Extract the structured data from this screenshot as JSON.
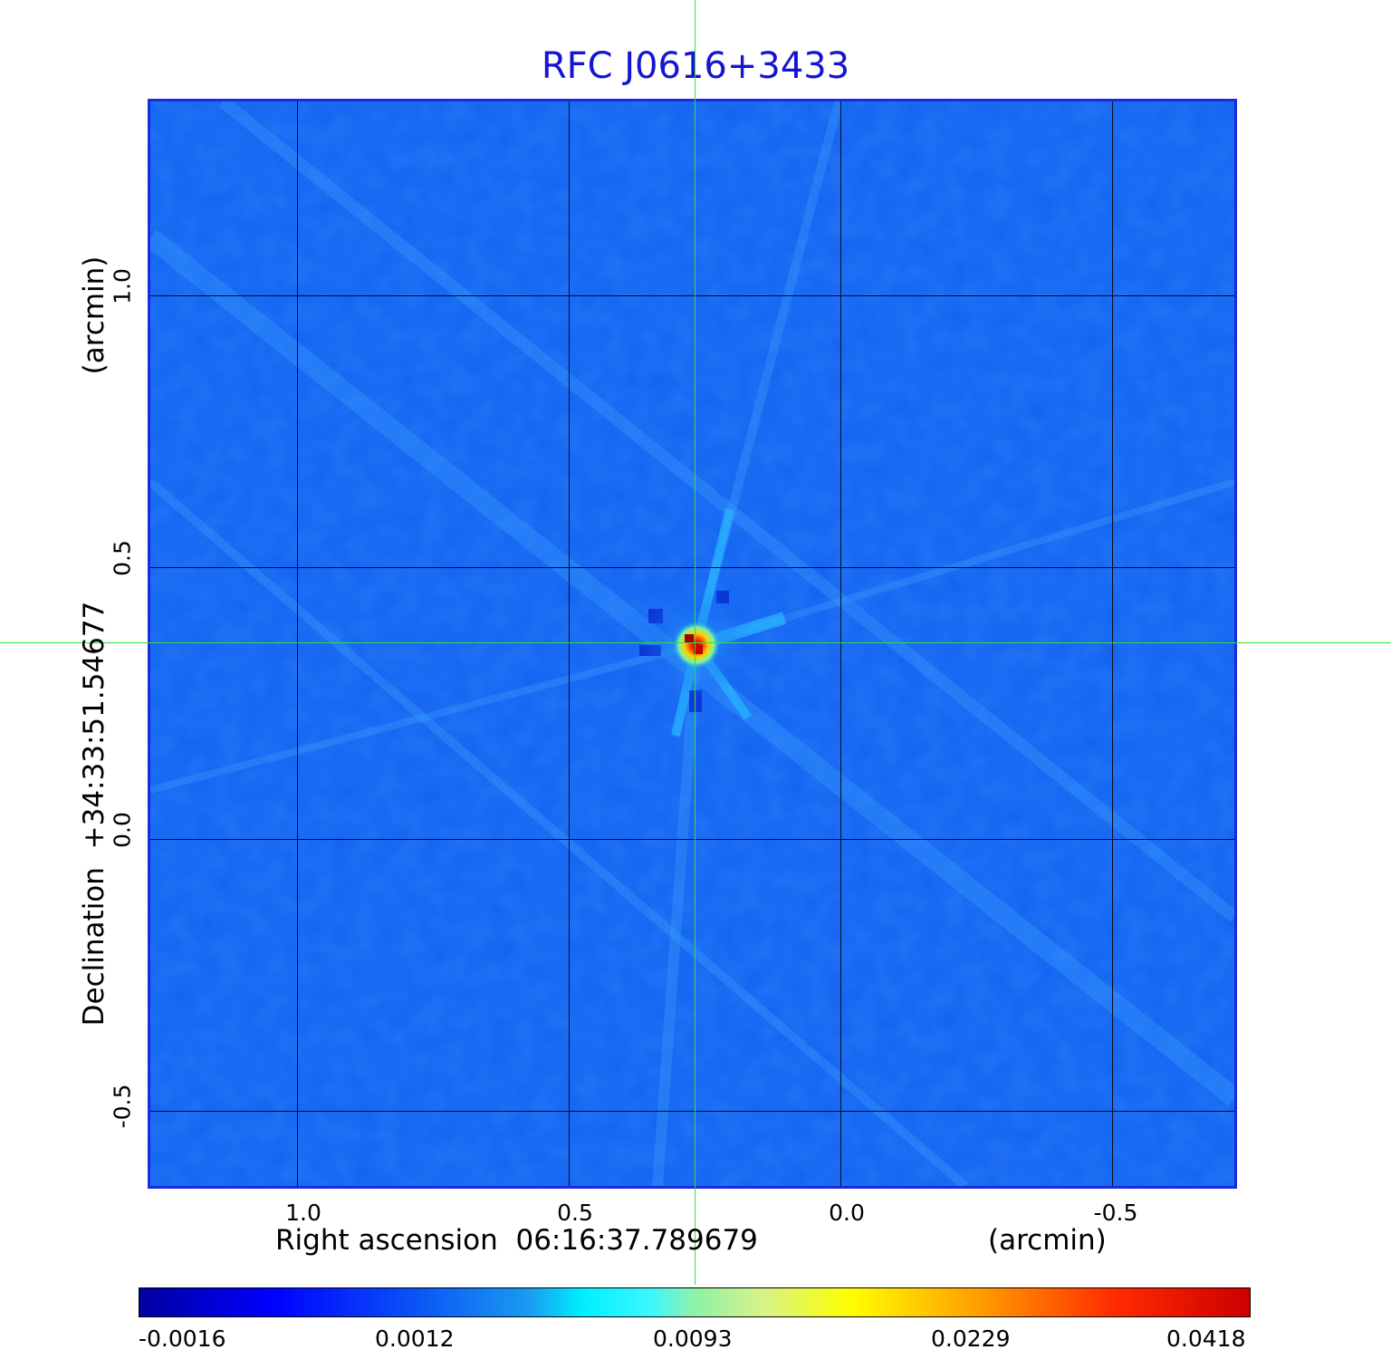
{
  "title": "RFC J0616+3433",
  "axes": {
    "x_label": "Right ascension  06:16:37.789679",
    "x_unit": "(arcmin)",
    "y_label": "Declination  +34:33:51.54677",
    "y_unit": "(arcmin)",
    "x_ticks": [
      {
        "value": 1.0,
        "label": "1.0"
      },
      {
        "value": 0.5,
        "label": "0.5"
      },
      {
        "value": 0.0,
        "label": "0.0"
      },
      {
        "value": -0.5,
        "label": "-0.5"
      }
    ],
    "y_ticks": [
      {
        "value": 1.0,
        "label": "1.0"
      },
      {
        "value": 0.5,
        "label": "0.5"
      },
      {
        "value": 0.0,
        "label": "0.0"
      },
      {
        "value": -0.5,
        "label": "-0.5"
      }
    ],
    "x_range": [
      1.273,
      -0.727
    ],
    "y_range": [
      -0.64,
      1.36
    ]
  },
  "crosshair": {
    "x": 0.268,
    "y": 0.362,
    "color": "#33dd44"
  },
  "colorbar": {
    "ticks": [
      {
        "label": "-0.0016"
      },
      {
        "label": "0.0012"
      },
      {
        "label": "0.0093"
      },
      {
        "label": "0.0229"
      },
      {
        "label": "0.0418"
      }
    ]
  },
  "colors": {
    "title": "#1414d2",
    "frame": "#1a2bd8",
    "background_map": "#1262f0"
  }
}
